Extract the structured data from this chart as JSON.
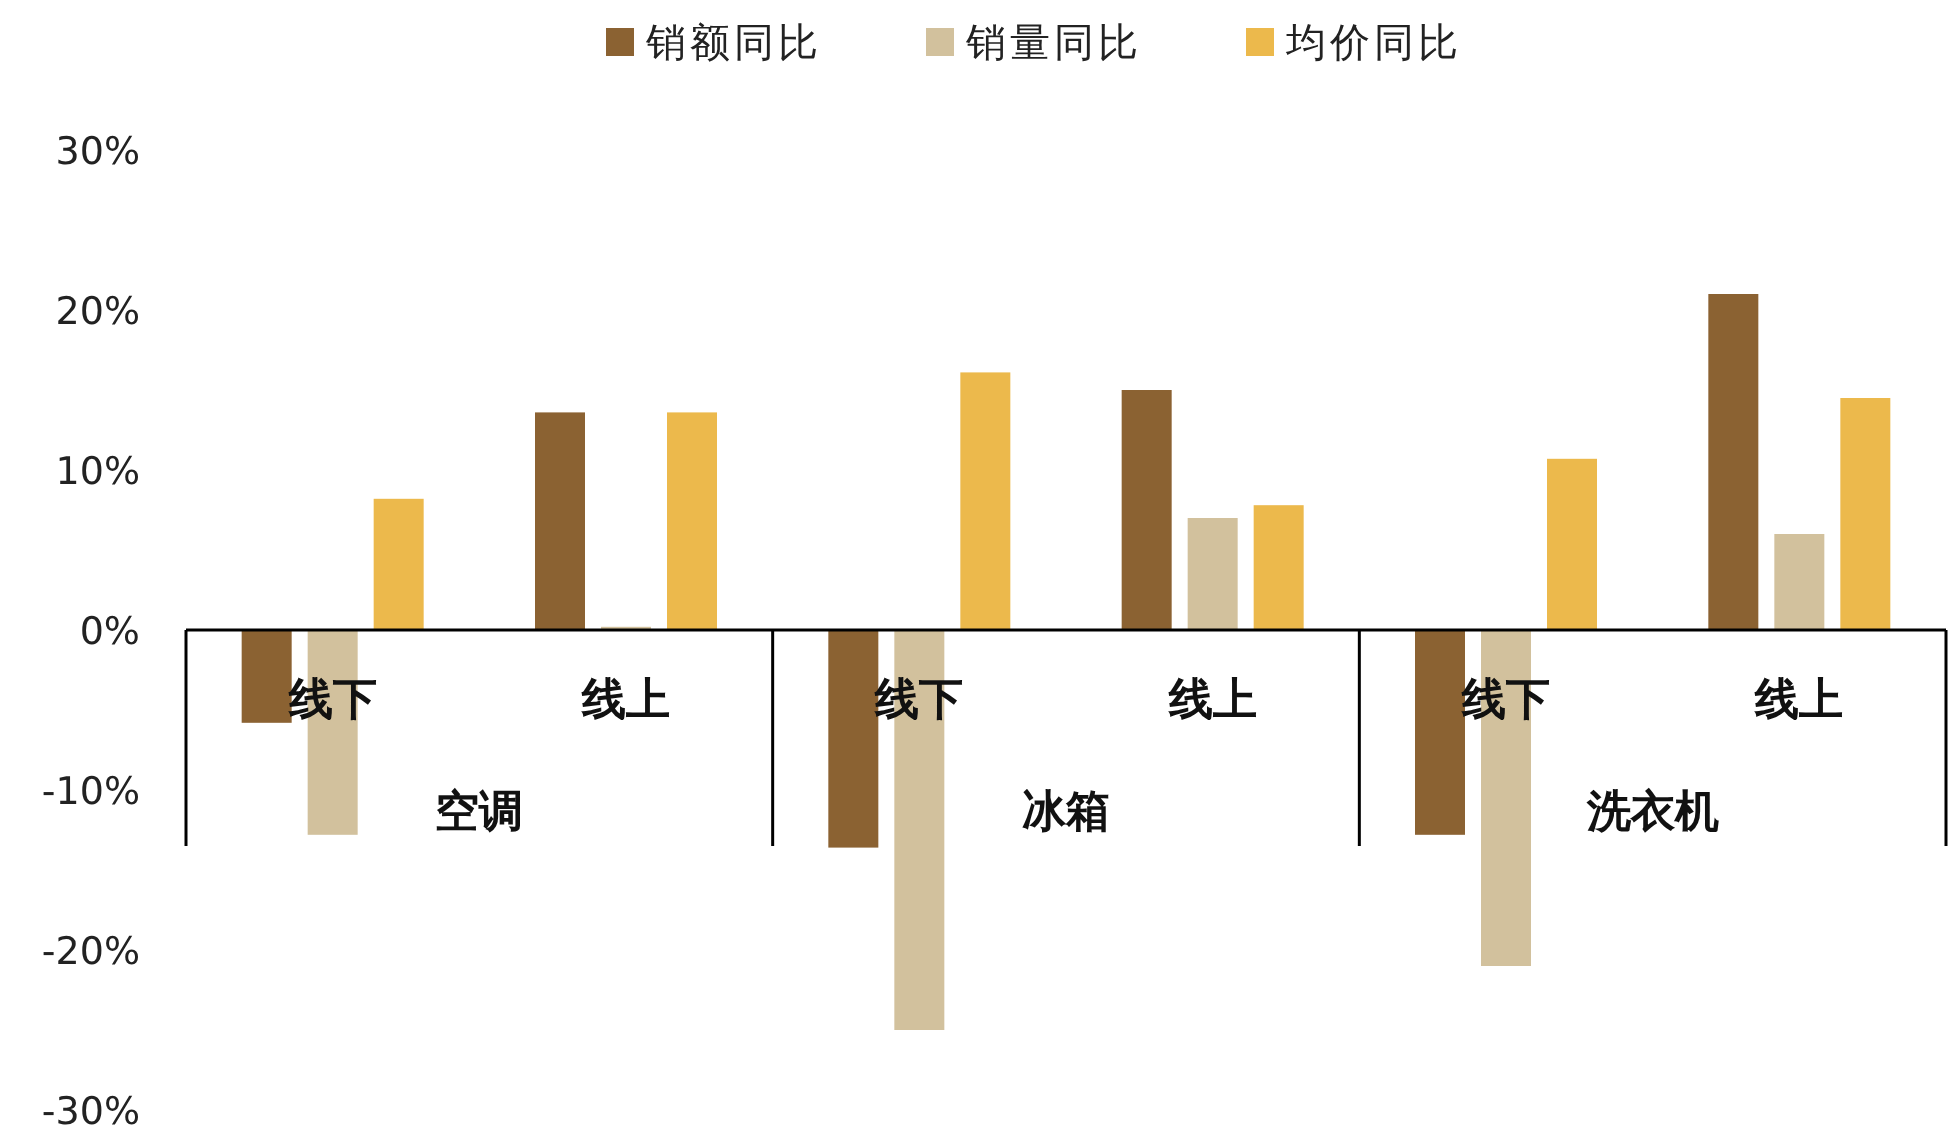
{
  "chart_data": {
    "type": "bar",
    "categories": [
      "线下",
      "线上",
      "线下",
      "线上",
      "线下",
      "线上"
    ],
    "annotations": [
      "空调",
      "冰箱",
      "洗衣机"
    ],
    "series": [
      {
        "name": "销额同比",
        "color": "#8b6232",
        "values": [
          -5.8,
          13.6,
          -13.6,
          15,
          -12.8,
          21
        ]
      },
      {
        "name": "销量同比",
        "color": "#d2c19d",
        "values": [
          -12.8,
          0.2,
          -25,
          7,
          -21,
          6
        ]
      },
      {
        "name": "均价同比",
        "color": "#ecb94c",
        "values": [
          8.2,
          13.6,
          16.1,
          7.8,
          10.7,
          14.5
        ]
      }
    ],
    "ylim": [
      -30,
      30
    ],
    "yticks": [
      {
        "value": -30,
        "label": "-30%"
      },
      {
        "value": -20,
        "label": "-20%"
      },
      {
        "value": -10,
        "label": "-10%"
      },
      {
        "value": 0,
        "label": "0%"
      },
      {
        "value": 10,
        "label": "10%"
      },
      {
        "value": 20,
        "label": "20%"
      },
      {
        "value": 30,
        "label": "30%"
      }
    ],
    "legend": "top",
    "grid": false
  }
}
